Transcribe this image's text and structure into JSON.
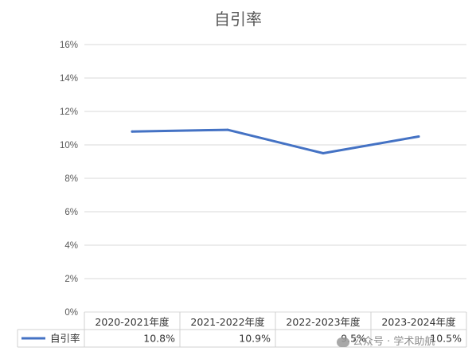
{
  "chart_data": {
    "type": "line",
    "title": "自引率",
    "categories": [
      "2020-2021年度",
      "2021-2022年度",
      "2022-2023年度",
      "2023-2024年度"
    ],
    "series": [
      {
        "name": "自引率",
        "values": [
          10.8,
          10.9,
          9.5,
          10.5
        ],
        "labels": [
          "10.8%",
          "10.9%",
          "9.5%",
          "10.5%"
        ],
        "color": "#4472C4"
      }
    ],
    "ylim": [
      0,
      16
    ],
    "yticks": [
      "0%",
      "2%",
      "4%",
      "6%",
      "8%",
      "10%",
      "12%",
      "14%",
      "16%"
    ],
    "grid": true,
    "legend": "data table",
    "xlabel": "",
    "ylabel": ""
  },
  "watermark": "公众号 · 学术助航"
}
